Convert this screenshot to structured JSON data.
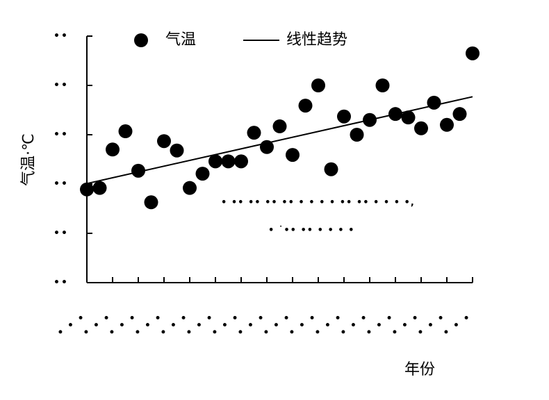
{
  "chart_data": {
    "type": "scatter",
    "y_label": "气温·℃",
    "x_label": "年份",
    "annotations": [
      "• •• •• •• •• • • • • •• •• • • • •,",
      "• ˙•• •• • • • •"
    ],
    "xlim": [
      0,
      30
    ],
    "ylim": [
      0,
      5
    ],
    "xticks": [
      {
        "value": 0,
        "label": "• • •"
      },
      {
        "value": 2,
        "label": "• • •"
      },
      {
        "value": 4,
        "label": "• • •"
      },
      {
        "value": 6,
        "label": "• • •"
      },
      {
        "value": 8,
        "label": "• • •"
      },
      {
        "value": 10,
        "label": "• • •"
      },
      {
        "value": 12,
        "label": "• • •"
      },
      {
        "value": 14,
        "label": "• • •"
      },
      {
        "value": 16,
        "label": "• • •"
      },
      {
        "value": 18,
        "label": "• • •"
      },
      {
        "value": 20,
        "label": "• • •"
      },
      {
        "value": 22,
        "label": "• • •"
      },
      {
        "value": 24,
        "label": "• • •"
      },
      {
        "value": 26,
        "label": "• • •"
      },
      {
        "value": 28,
        "label": "• • •"
      },
      {
        "value": 30,
        "label": "• • •"
      }
    ],
    "yticks": [
      {
        "value": 0,
        "label": "••"
      },
      {
        "value": 1,
        "label": "••"
      },
      {
        "value": 2,
        "label": "••"
      },
      {
        "value": 3,
        "label": "••"
      },
      {
        "value": 4,
        "label": "••"
      },
      {
        "value": 5,
        "label": "••"
      }
    ],
    "series": [
      {
        "name": "气温",
        "type": "scatter",
        "color": "#000000",
        "x": [
          0,
          1,
          2,
          3,
          4,
          5,
          6,
          7,
          8,
          9,
          10,
          11,
          12,
          13,
          14,
          15,
          16,
          17,
          18,
          19,
          20,
          21,
          22,
          23,
          24,
          25,
          26,
          27,
          28,
          29,
          30
        ],
        "values": [
          1.89,
          1.92,
          2.7,
          3.07,
          2.27,
          1.63,
          2.87,
          2.68,
          1.92,
          2.21,
          2.46,
          2.46,
          2.46,
          3.04,
          2.75,
          3.17,
          2.59,
          3.59,
          4.0,
          2.3,
          3.37,
          3.0,
          3.3,
          4.0,
          3.42,
          3.35,
          3.13,
          3.65,
          3.2,
          3.42,
          4.65
        ]
      },
      {
        "name": "线性趋势",
        "type": "line",
        "color": "#000000",
        "x": [
          0,
          30
        ],
        "values": [
          2.01,
          3.77
        ]
      }
    ]
  }
}
